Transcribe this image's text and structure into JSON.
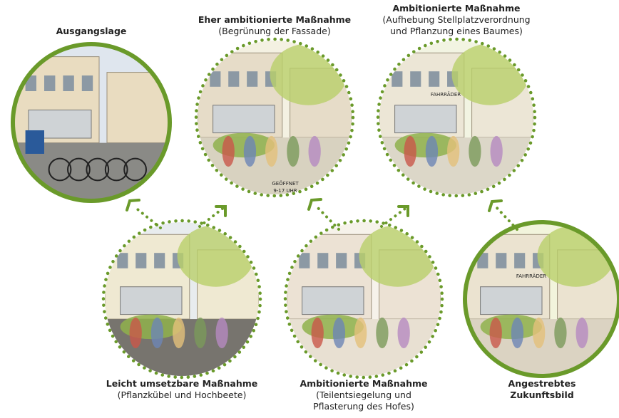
{
  "nodes": [
    {
      "title": [
        "Ausgangslage"
      ],
      "subtitle": []
    },
    {
      "title": [
        "Eher ambitionierte Maßnahme"
      ],
      "subtitle": [
        "(Begrünung der Fassade)"
      ],
      "sign": [
        "GEÖFFNET",
        "9-17 UHR"
      ]
    },
    {
      "title": [
        "Ambitionierte Maßnahme"
      ],
      "subtitle": [
        "(Aufhebung Stellplatzverordnung",
        "und Pflanzung eines Baumes)"
      ],
      "sign": [
        "FAHRRÄDER"
      ]
    },
    {
      "title": [
        "Leicht umsetzbare Maßnahme"
      ],
      "subtitle": [
        "(Pflanzkübel und Hochbeete)"
      ]
    },
    {
      "title": [
        "Ambitionierte Maßnahme"
      ],
      "subtitle": [
        "(Teilentsiegelung und",
        "Pflasterung des Hofes)"
      ]
    },
    {
      "title": [
        "Angestrebtes",
        "Zukunftsbild"
      ],
      "subtitle": [],
      "sign": [
        "FAHRRÄDER"
      ]
    }
  ]
}
